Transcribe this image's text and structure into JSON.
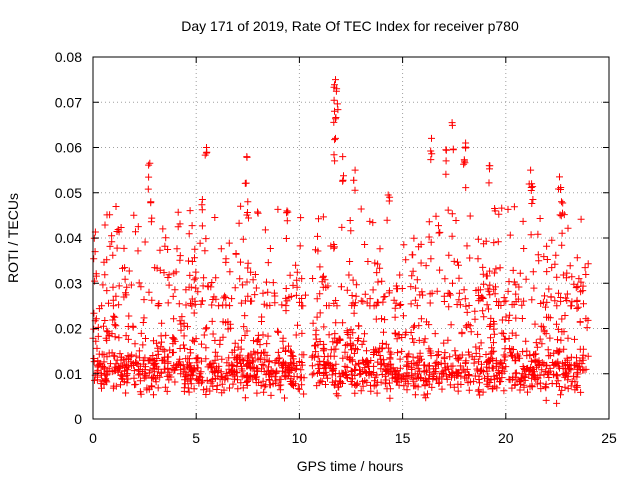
{
  "chart_data": {
    "type": "scatter",
    "title": "Day 171 of 2019, Rate Of TEC Index for receiver p780",
    "xlabel": "GPS time / hours",
    "ylabel": "ROTI / TECUs",
    "xlim": [
      0,
      25
    ],
    "ylim": [
      0,
      0.08
    ],
    "x_ticks": [
      0,
      5,
      10,
      15,
      20,
      25
    ],
    "x_tick_labels": [
      "0",
      "5",
      "10",
      "15",
      "20",
      "25"
    ],
    "y_ticks": [
      0,
      0.01,
      0.02,
      0.03,
      0.04,
      0.05,
      0.06,
      0.07,
      0.08
    ],
    "y_tick_labels": [
      "0",
      "0.01",
      "0.02",
      "0.03",
      "0.04",
      "0.05",
      "0.06",
      "0.07",
      "0.08"
    ],
    "grid": true,
    "marker": "+",
    "color": "#ff0000",
    "data_gap_hours": [
      10.3,
      10.6
    ],
    "notable_points": [
      {
        "x": 0.1,
        "y": 0.037
      },
      {
        "x": 0.9,
        "y": 0.0405
      },
      {
        "x": 2.75,
        "y": 0.0565
      },
      {
        "x": 2.8,
        "y": 0.048
      },
      {
        "x": 5.5,
        "y": 0.06
      },
      {
        "x": 5.3,
        "y": 0.0485
      },
      {
        "x": 7.45,
        "y": 0.058
      },
      {
        "x": 7.5,
        "y": 0.048
      },
      {
        "x": 9.4,
        "y": 0.046
      },
      {
        "x": 11.75,
        "y": 0.075
      },
      {
        "x": 11.8,
        "y": 0.073
      },
      {
        "x": 11.7,
        "y": 0.068
      },
      {
        "x": 11.75,
        "y": 0.062
      },
      {
        "x": 12.1,
        "y": 0.058
      },
      {
        "x": 12.7,
        "y": 0.055
      },
      {
        "x": 14.3,
        "y": 0.0495
      },
      {
        "x": 16.4,
        "y": 0.062
      },
      {
        "x": 17.1,
        "y": 0.0595
      },
      {
        "x": 17.4,
        "y": 0.0655
      },
      {
        "x": 18.05,
        "y": 0.061
      },
      {
        "x": 18.0,
        "y": 0.057
      },
      {
        "x": 19.2,
        "y": 0.056
      },
      {
        "x": 21.2,
        "y": 0.055
      },
      {
        "x": 21.25,
        "y": 0.052
      },
      {
        "x": 22.6,
        "y": 0.0535
      },
      {
        "x": 22.7,
        "y": 0.048
      }
    ],
    "dense_band": {
      "description": "dense cluster of samples spanning 0 to 24 hours",
      "y_typical_range": [
        0.003,
        0.03
      ],
      "y_core_range": [
        0.005,
        0.02
      ]
    }
  }
}
